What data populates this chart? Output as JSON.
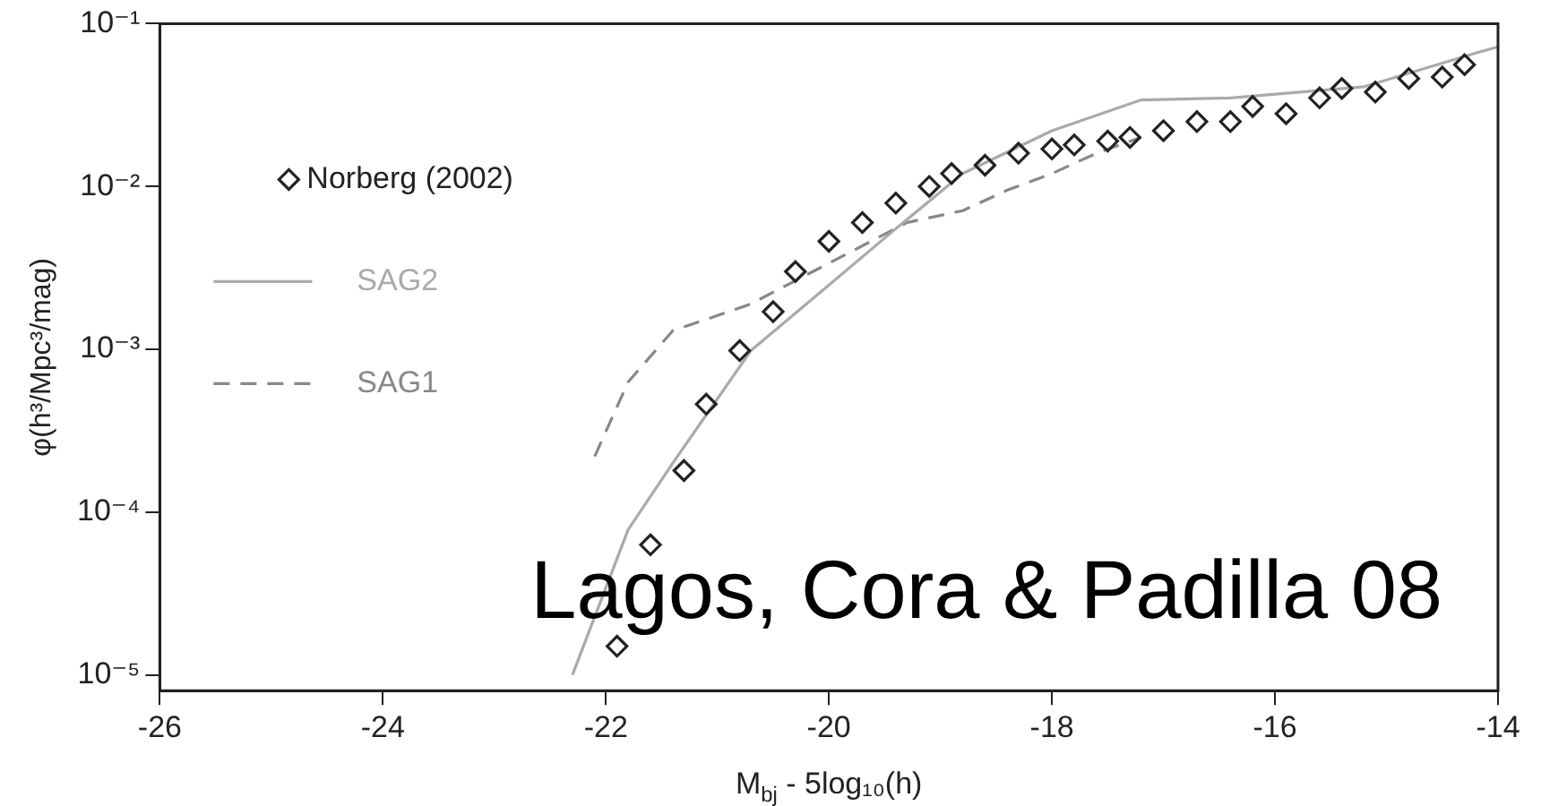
{
  "chart_data": {
    "type": "line",
    "xlabel": "M$_{bj}$ - 5log₁₀(h)",
    "ylabel": "φ(h³/Mpc³/mag)",
    "xlim": [
      -26,
      -14
    ],
    "xticks": [
      -26,
      -24,
      -22,
      -20,
      -18,
      -16,
      -14
    ],
    "ylim": [
      8e-06,
      0.1
    ],
    "yticks": [
      {
        "value": 1e-05,
        "label": "10⁻⁵"
      },
      {
        "value": 0.0001,
        "label": "10⁻⁴"
      },
      {
        "value": 0.001,
        "label": "10⁻³"
      },
      {
        "value": 0.01,
        "label": "10⁻²"
      },
      {
        "value": 0.1,
        "label": "10⁻¹"
      }
    ],
    "log": "y",
    "grid": false,
    "legend": "top left",
    "annotations": [
      "Lagos, Cora & Padilla 08"
    ],
    "series": [
      {
        "name": "Norberg (2002)",
        "type": "scatter",
        "marker": "diamond",
        "color": "#222222",
        "x": [
          -21.9,
          -21.6,
          -21.3,
          -21.1,
          -20.8,
          -20.5,
          -20.3,
          -20.0,
          -19.7,
          -19.4,
          -19.1,
          -18.9,
          -18.6,
          -18.3,
          -18.0,
          -17.8,
          -17.5,
          -17.3,
          -17.0,
          -16.7,
          -16.4,
          -16.2,
          -15.9,
          -15.6,
          -15.4,
          -15.1,
          -14.8,
          -14.5,
          -14.3
        ],
        "values": [
          1.5e-05,
          6.3e-05,
          0.00018,
          0.00046,
          0.00098,
          0.0017,
          0.003,
          0.0046,
          0.006,
          0.0079,
          0.01,
          0.012,
          0.0135,
          0.016,
          0.017,
          0.018,
          0.019,
          0.02,
          0.022,
          0.025,
          0.025,
          0.031,
          0.028,
          0.035,
          0.04,
          0.038,
          0.046,
          0.047,
          0.056
        ]
      },
      {
        "name": "SAG2",
        "type": "line",
        "line_style": "solid",
        "marker": "none",
        "color": "#aaaaaa",
        "x": [
          -22.3,
          -21.8,
          -21.4,
          -20.7,
          -20.2,
          -19.4,
          -18.8,
          -18.0,
          -17.2,
          -16.4,
          -15.2,
          -14.2,
          -14.0
        ],
        "values": [
          1e-05,
          7.8e-05,
          0.0002,
          0.00098,
          0.0019,
          0.0055,
          0.012,
          0.022,
          0.034,
          0.035,
          0.041,
          0.066,
          0.072
        ]
      },
      {
        "name": "SAG1",
        "type": "line",
        "line_style": "dashed",
        "marker": "none",
        "color": "#888888",
        "x": [
          -22.1,
          -21.8,
          -21.4,
          -20.9,
          -20.7,
          -19.3,
          -18.8,
          -18.4,
          -18.0,
          -17.6,
          -17.2
        ],
        "values": [
          0.00022,
          0.00063,
          0.0013,
          0.0017,
          0.0019,
          0.006,
          0.0071,
          0.0095,
          0.012,
          0.016,
          0.02
        ]
      }
    ]
  }
}
